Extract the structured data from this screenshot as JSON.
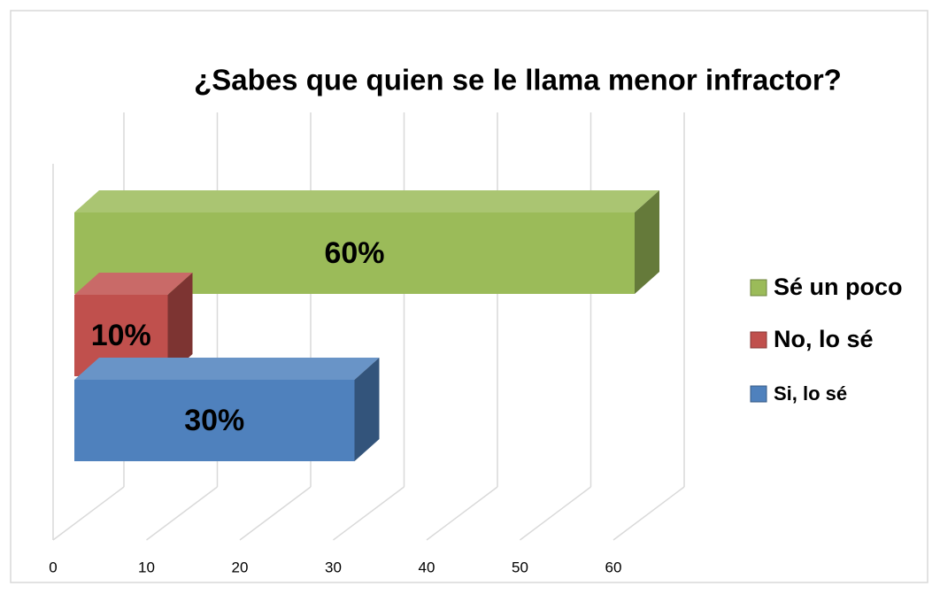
{
  "chart_data": {
    "type": "bar3d_horizontal",
    "title": "¿Sabes que quien se le llama menor infractor?",
    "series": [
      {
        "name": "Sé un poco",
        "color": "#9bbb59",
        "values": [
          60
        ],
        "value_labels": [
          "60%"
        ]
      },
      {
        "name": "No, lo sé",
        "color": "#c0504d",
        "values": [
          10
        ],
        "value_labels": [
          "10%"
        ]
      },
      {
        "name": "Si, lo sé",
        "color": "#4f81bd",
        "values": [
          30
        ],
        "value_labels": [
          "30%"
        ]
      }
    ],
    "xlim": [
      0,
      60
    ],
    "xticks": [
      0,
      10,
      20,
      30,
      40,
      50,
      60
    ],
    "grid": true,
    "legend": "right"
  }
}
